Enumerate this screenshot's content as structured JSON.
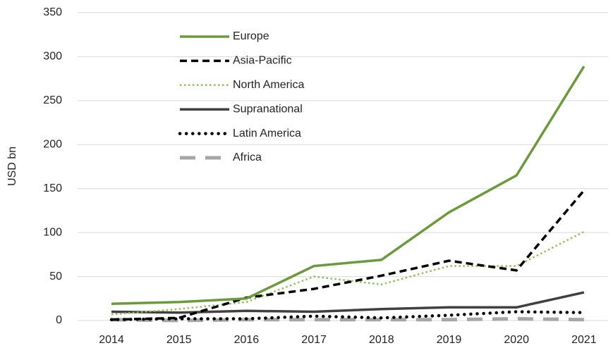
{
  "chart_data": {
    "type": "line",
    "ylabel": "USD bn",
    "categories": [
      "2014",
      "2015",
      "2016",
      "2017",
      "2018",
      "2019",
      "2020",
      "2021"
    ],
    "series": [
      {
        "name": "Europe",
        "color": "#6a9a3a",
        "dash": "solid",
        "values": [
          19,
          21,
          25,
          62,
          69,
          123,
          165,
          289
        ]
      },
      {
        "name": "Asia-Pacific",
        "color": "#000000",
        "dash": "dashed",
        "values": [
          1,
          3,
          26,
          36,
          51,
          68,
          57,
          148
        ]
      },
      {
        "name": "North America",
        "color": "#8cc152",
        "dash": "dotted",
        "values": [
          7,
          13,
          21,
          50,
          41,
          62,
          62,
          101
        ]
      },
      {
        "name": "Supranational",
        "color": "#404040",
        "dash": "solid",
        "values": [
          10,
          9,
          11,
          10,
          13,
          15,
          15,
          32
        ]
      },
      {
        "name": "Latin America",
        "color": "#000000",
        "dash": "round-dotted",
        "values": [
          1,
          2,
          2,
          5,
          3,
          6,
          10,
          9
        ]
      },
      {
        "name": "Africa",
        "color": "#a6a6a6",
        "dash": "long-dashed",
        "values": [
          1,
          0,
          1,
          1,
          1,
          1,
          2,
          1
        ]
      }
    ],
    "ylim": [
      0,
      350
    ],
    "yticks": [
      0,
      50,
      100,
      150,
      200,
      250,
      300,
      350
    ],
    "grid": true,
    "legend": "upper left"
  }
}
